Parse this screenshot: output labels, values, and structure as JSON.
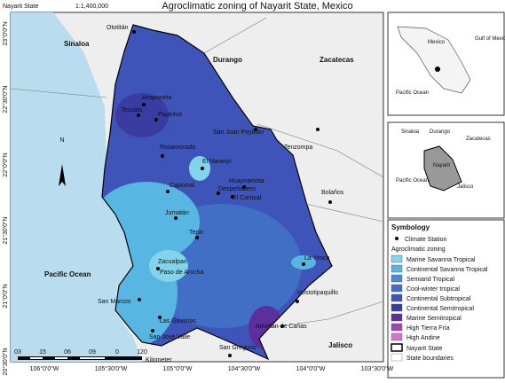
{
  "header": {
    "state": "Nayarit State",
    "scale": "1:1,400,000",
    "title": "Agroclimatic zoning of Nayarit State, Mexico"
  },
  "map": {
    "north": "N",
    "lat_labels": [
      "23°0'0\"N",
      "22°30'0\"N",
      "22°0'0\"N",
      "21°30'0\"N",
      "21°0'0\"N",
      "20°30'0\"N"
    ],
    "lon_labels": [
      "106°0'0\"W",
      "105°30'0\"W",
      "105°0'0\"W",
      "104°30'0\"W",
      "104°0'0\"W",
      "103°30'0\"W"
    ],
    "regions": [
      "Sinaloa",
      "Durango",
      "Zacatecas",
      "Pacific Ocean",
      "Jalisco"
    ],
    "places": [
      "Ototitán",
      "Acaponeta",
      "Tecuala",
      "Pajaritos",
      "San Juan Peyotán",
      "Tenzompa",
      "Rosamorada",
      "El Naranjo",
      "Huaynamota",
      "Despeñadero",
      "El Carrizal",
      "Capomal",
      "Bolaños",
      "Jumatán",
      "Tepic",
      "Zacualpan",
      "Paso de Arocha",
      "La Yesca",
      "San Marcos",
      "Hostotipaquillo",
      "Las Gaviotas",
      "San José Valle",
      "Amatlán de Cañas",
      "San Gregorio"
    ],
    "scale_bar": {
      "labels": [
        "03",
        "15",
        "06",
        "09",
        "0",
        "120"
      ],
      "unit": "Kilometer"
    }
  },
  "inset_mexico": {
    "labels": [
      "Mexico",
      "Gulf of Mexico",
      "Pacific Ocean"
    ]
  },
  "inset_region": {
    "labels": [
      "Sinaloa",
      "Durango",
      "Zacatecas",
      "Nayarit",
      "Pacific Ocean",
      "Jalisco"
    ]
  },
  "legend": {
    "title": "Symbology",
    "station": "Climate Station",
    "zoning_title": "Agroclimatic zoning",
    "classes": [
      {
        "label": "Marine Savanna Tropical",
        "color": "#82d4ea"
      },
      {
        "label": "Continental Savanna Tropical",
        "color": "#58b6e2"
      },
      {
        "label": "Semiarid Tropical",
        "color": "#4b8ad0"
      },
      {
        "label": "Cool-winter tropical",
        "color": "#416fc6"
      },
      {
        "label": "Continental Subtropical",
        "color": "#3e54b8"
      },
      {
        "label": "Continental Semitropical",
        "color": "#3a3ca2"
      },
      {
        "label": "Marine Semitropical",
        "color": "#5c2f9c"
      },
      {
        "label": "High Tierra Fría",
        "color": "#a244b2"
      },
      {
        "label": "High Andine",
        "color": "#d474cc"
      }
    ],
    "state": "Nayarit State",
    "boundaries": "State boundaries"
  }
}
